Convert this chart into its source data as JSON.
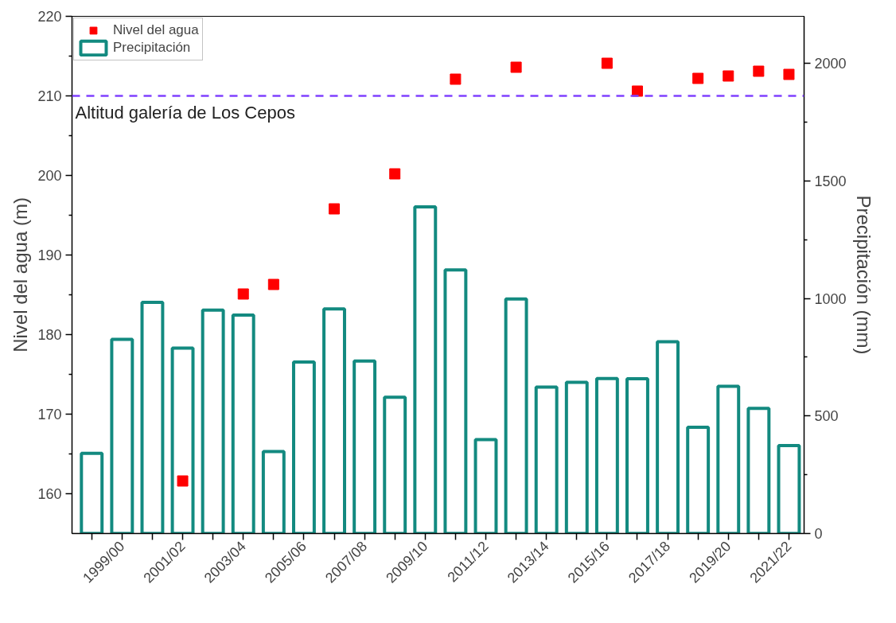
{
  "chart_data": {
    "type": "bar",
    "categories": [
      null,
      "1999/00",
      null,
      "2001/02",
      null,
      "2003/04",
      null,
      "2005/06",
      null,
      "2007/08",
      null,
      "2009/10",
      null,
      "2011/12",
      null,
      "2013/14",
      null,
      "2015/16",
      null,
      "2017/18",
      null,
      "2019/20",
      null,
      "2021/22"
    ],
    "series": [
      {
        "name": "Nivel del agua",
        "type": "scatter",
        "color": "#ff0000",
        "values": [
          null,
          null,
          null,
          161.6,
          null,
          185.1,
          186.3,
          null,
          195.8,
          null,
          200.2,
          null,
          212.1,
          null,
          213.6,
          null,
          null,
          214.1,
          210.6,
          null,
          212.2,
          212.5,
          213.1,
          212.7
        ]
      },
      {
        "name": "Precipitación",
        "axis": "y2",
        "color": "#138a80",
        "values": [
          341,
          826,
          983,
          789,
          950,
          929,
          349,
          729,
          955,
          734,
          580,
          1389,
          1121,
          399,
          998,
          623,
          643,
          659,
          658,
          816,
          452,
          626,
          532,
          374
        ]
      }
    ],
    "ylabel": "Nivel del agua (m)",
    "y2label": "Precipitación (mm)",
    "ylim": [
      155,
      220
    ],
    "yticks": [
      160,
      170,
      180,
      190,
      200,
      210,
      220
    ],
    "y2lim": [
      0,
      2200
    ],
    "y2ticks": [
      0,
      500,
      1000,
      1500,
      2000
    ],
    "ref_lines": [
      {
        "axis": "y",
        "value": 210,
        "label": "Altitud galería de Los Cepos",
        "color": "#8040ff",
        "line_style": "dashed"
      }
    ],
    "marker": "square",
    "legend": "top left",
    "grid": false
  }
}
